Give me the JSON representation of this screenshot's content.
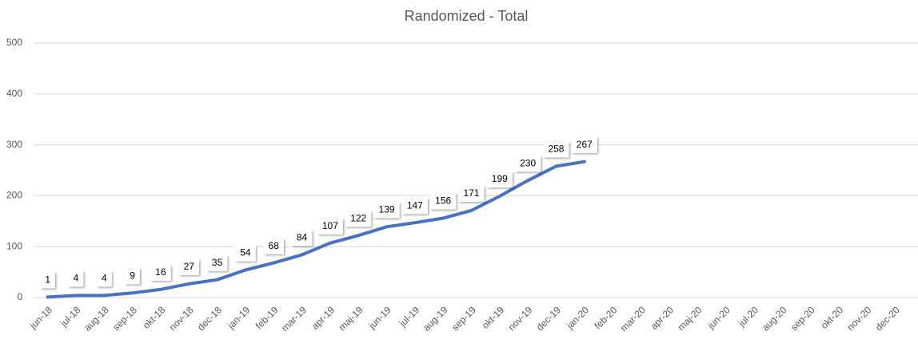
{
  "chart_data": {
    "type": "line",
    "title": "Randomized - Total",
    "categories": [
      "jun-18",
      "jul-18",
      "aug-18",
      "sep-18",
      "okt-18",
      "nov-18",
      "dec-18",
      "jan-19",
      "feb-19",
      "mar-19",
      "apr-19",
      "maj-19",
      "jun-19",
      "jul-19",
      "aug-19",
      "sep-19",
      "okt-19",
      "nov-19",
      "dec-19",
      "jan-20",
      "feb-20",
      "mar-20",
      "apr-20",
      "maj-20",
      "jun-20",
      "jul-20",
      "aug-20",
      "sep-20",
      "okt-20",
      "nov-20",
      "dec-20"
    ],
    "series": [
      {
        "name": "Total",
        "color": "#4472c4",
        "values": [
          1,
          4,
          4,
          9,
          16,
          27,
          35,
          54,
          68,
          84,
          107,
          122,
          139,
          147,
          156,
          171,
          199,
          230,
          258,
          267,
          null,
          null,
          null,
          null,
          null,
          null,
          null,
          null,
          null,
          null,
          null
        ]
      }
    ],
    "ylim": [
      0,
      500
    ],
    "yticks": [
      0,
      100,
      200,
      300,
      400,
      500
    ],
    "grid": true,
    "data_labels": true
  }
}
